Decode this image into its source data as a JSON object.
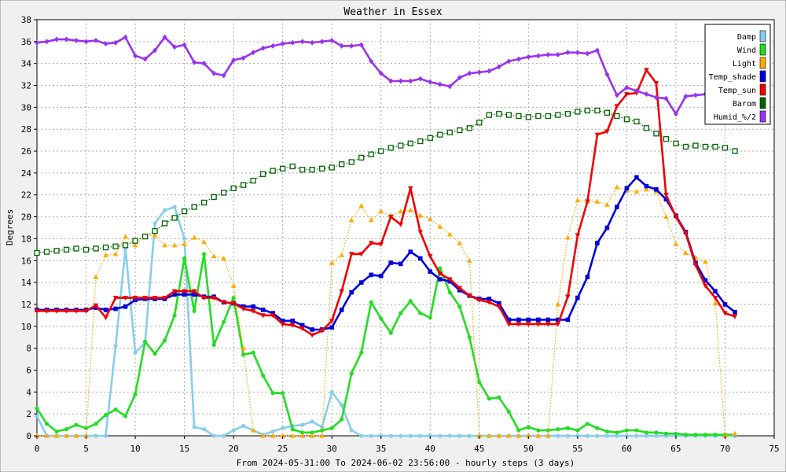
{
  "chart_data": {
    "type": "line",
    "title": "Weather in Essex",
    "xlabel": "From 2024-05-31:00 To 2024-06-02 23:56:00 - hourly steps (3 days)",
    "ylabel": "Degrees",
    "xlim": [
      0,
      75
    ],
    "ylim": [
      0,
      38
    ],
    "x_ticks": [
      0,
      5,
      10,
      15,
      20,
      25,
      30,
      35,
      40,
      45,
      50,
      55,
      60,
      65,
      70,
      75
    ],
    "y_ticks": [
      0,
      2,
      4,
      6,
      8,
      10,
      12,
      14,
      16,
      18,
      20,
      22,
      24,
      26,
      28,
      30,
      32,
      34,
      36,
      38
    ],
    "grid": true,
    "legend_position": "top-right",
    "x": [
      0,
      1,
      2,
      3,
      4,
      5,
      6,
      7,
      8,
      9,
      10,
      11,
      12,
      13,
      14,
      15,
      16,
      17,
      18,
      19,
      20,
      21,
      22,
      23,
      24,
      25,
      26,
      27,
      28,
      29,
      30,
      31,
      32,
      33,
      34,
      35,
      36,
      37,
      38,
      39,
      40,
      41,
      42,
      43,
      44,
      45,
      46,
      47,
      48,
      49,
      50,
      51,
      52,
      53,
      54,
      55,
      56,
      57,
      58,
      59,
      60,
      61,
      62,
      63,
      64,
      65,
      66,
      67,
      68,
      69,
      70,
      71
    ],
    "series": [
      {
        "name": "Damp",
        "color": "#87ceeb",
        "line": "solid",
        "marker": "circle",
        "values": [
          1.8,
          0,
          0,
          0,
          0,
          0,
          0,
          0,
          8.2,
          17.1,
          7.6,
          8.5,
          19.4,
          20.6,
          20.9,
          18.0,
          0.8,
          0.6,
          0,
          0,
          0.5,
          0.9,
          0.5,
          0.1,
          0.4,
          0.7,
          0.9,
          1.0,
          1.3,
          0.8,
          4.0,
          2.8,
          0.5,
          0,
          0,
          0,
          0,
          0,
          0,
          0,
          0,
          0,
          0,
          0,
          0,
          0,
          0,
          0,
          0,
          0,
          0,
          0,
          0,
          0,
          0,
          0,
          0,
          0,
          0,
          0,
          0,
          0,
          0,
          0,
          0,
          0,
          0,
          0,
          0,
          0,
          0,
          0
        ]
      },
      {
        "name": "Wind",
        "color": "#22dd22",
        "line": "solid",
        "marker": "circle",
        "values": [
          2.5,
          1.1,
          0.4,
          0.6,
          1.0,
          0.7,
          1.1,
          1.9,
          2.4,
          1.8,
          3.8,
          8.6,
          7.5,
          8.7,
          11.0,
          16.2,
          11.4,
          16.6,
          8.3,
          10.4,
          12.6,
          7.4,
          7.6,
          5.5,
          3.9,
          3.9,
          0.6,
          0.3,
          0.3,
          0.5,
          0.7,
          1.5,
          5.7,
          7.6,
          12.2,
          10.7,
          9.4,
          11.2,
          12.3,
          11.2,
          10.8,
          15.3,
          13.1,
          11.8,
          9.0,
          4.9,
          3.4,
          3.5,
          2.2,
          0.5,
          0.8,
          0.5,
          0.5,
          0.6,
          0.7,
          0.5,
          1.1,
          0.7,
          0.4,
          0.3,
          0.5,
          0.5,
          0.3,
          0.3,
          0.2,
          0.2,
          0.1,
          0.1,
          0.1,
          0.1,
          0.1,
          0.1
        ]
      },
      {
        "name": "Light",
        "color": "#ffaa00",
        "line": "dotted",
        "marker": "triangle",
        "values": [
          0,
          0,
          0,
          0,
          0,
          0,
          14.5,
          16.5,
          16.6,
          18.2,
          17.4,
          18.3,
          18.3,
          17.4,
          17.4,
          17.5,
          18.1,
          17.7,
          16.4,
          16.2,
          13.7,
          8.0,
          0.5,
          0,
          0,
          0,
          0,
          0,
          0,
          0,
          15.8,
          16.5,
          19.7,
          21.0,
          19.7,
          20.5,
          20.1,
          20.5,
          20.6,
          20.1,
          19.8,
          19.1,
          18.4,
          17.6,
          16.0,
          0,
          0,
          0,
          0,
          0,
          0,
          0,
          0,
          12.0,
          18.1,
          21.5,
          21.4,
          21.4,
          21.1,
          22.7,
          22.4,
          22.3,
          22.5,
          22.3,
          20.0,
          17.5,
          16.7,
          16.3,
          15.9,
          12.1,
          0,
          0.2
        ]
      },
      {
        "name": "Temp_shade",
        "color": "#0000dd",
        "line": "solid",
        "marker": "square",
        "values": [
          11.5,
          11.5,
          11.5,
          11.5,
          11.5,
          11.5,
          11.7,
          11.5,
          11.6,
          11.8,
          12.4,
          12.5,
          12.5,
          12.5,
          12.9,
          12.9,
          12.9,
          12.7,
          12.7,
          12.2,
          12.1,
          11.8,
          11.8,
          11.5,
          11.2,
          10.5,
          10.5,
          10.1,
          9.7,
          9.7,
          9.9,
          11.5,
          13.1,
          14.0,
          14.7,
          14.6,
          15.8,
          15.7,
          16.8,
          16.2,
          15.0,
          14.3,
          14.1,
          13.3,
          12.8,
          12.5,
          12.5,
          12.1,
          10.6,
          10.6,
          10.6,
          10.6,
          10.6,
          10.6,
          10.6,
          12.6,
          14.5,
          17.6,
          19.0,
          20.9,
          22.6,
          23.6,
          22.8,
          22.5,
          21.6,
          20.1,
          18.6,
          15.8,
          14.2,
          13.2,
          12.0,
          11.3
        ]
      },
      {
        "name": "Temp_sun",
        "color": "#ee0000",
        "line": "solid",
        "marker": "triangle-down",
        "values": [
          11.4,
          11.4,
          11.4,
          11.4,
          11.4,
          11.4,
          11.9,
          10.8,
          12.6,
          12.6,
          12.6,
          12.6,
          12.6,
          12.6,
          13.2,
          13.2,
          13.2,
          12.6,
          12.6,
          12.2,
          12.1,
          11.6,
          11.4,
          11.0,
          11.0,
          10.2,
          10.1,
          9.8,
          9.2,
          9.6,
          10.5,
          13.2,
          16.6,
          16.6,
          17.6,
          17.5,
          20.0,
          19.3,
          22.6,
          18.6,
          16.4,
          14.8,
          14.3,
          13.5,
          12.8,
          12.4,
          12.2,
          11.8,
          10.2,
          10.2,
          10.2,
          10.2,
          10.2,
          10.2,
          12.7,
          18.3,
          21.4,
          27.5,
          27.8,
          30.1,
          31.2,
          31.3,
          33.4,
          32.2,
          22.0,
          20.0,
          18.5,
          15.6,
          13.7,
          12.6,
          11.2,
          10.9
        ]
      },
      {
        "name": "Barom",
        "color": "#006400",
        "line": "dotted",
        "marker": "square-open",
        "values": [
          16.7,
          16.8,
          16.9,
          17.0,
          17.1,
          17.0,
          17.1,
          17.2,
          17.3,
          17.4,
          17.8,
          18.2,
          18.7,
          19.4,
          19.9,
          20.5,
          20.9,
          21.3,
          21.8,
          22.2,
          22.6,
          22.9,
          23.3,
          23.9,
          24.2,
          24.4,
          24.6,
          24.3,
          24.3,
          24.4,
          24.5,
          24.8,
          25.0,
          25.4,
          25.7,
          26.0,
          26.3,
          26.5,
          26.7,
          26.9,
          27.2,
          27.5,
          27.7,
          27.9,
          28.1,
          28.6,
          29.3,
          29.4,
          29.3,
          29.2,
          29.1,
          29.2,
          29.2,
          29.3,
          29.4,
          29.6,
          29.7,
          29.7,
          29.5,
          29.2,
          28.9,
          28.7,
          28.1,
          27.6,
          27.1,
          26.7,
          26.4,
          26.5,
          26.4,
          26.4,
          26.3,
          26.0
        ]
      },
      {
        "name": "Humid_%/2",
        "color": "#9933ee",
        "line": "solid",
        "marker": "diamond",
        "values": [
          35.9,
          36.0,
          36.2,
          36.2,
          36.1,
          36.0,
          36.1,
          35.8,
          35.9,
          36.4,
          34.7,
          34.4,
          35.2,
          36.4,
          35.5,
          35.7,
          34.1,
          34.0,
          33.1,
          32.9,
          34.3,
          34.5,
          35.0,
          35.4,
          35.6,
          35.8,
          35.9,
          36.0,
          35.9,
          36.0,
          36.1,
          35.6,
          35.6,
          35.7,
          34.2,
          33.1,
          32.4,
          32.4,
          32.4,
          32.6,
          32.3,
          32.1,
          31.9,
          32.7,
          33.1,
          33.2,
          33.3,
          33.7,
          34.2,
          34.4,
          34.6,
          34.7,
          34.8,
          34.8,
          35.0,
          35.0,
          34.9,
          35.2,
          33.0,
          31.1,
          31.8,
          31.5,
          31.2,
          30.9,
          30.8,
          29.4,
          31.0,
          31.1,
          31.2,
          null,
          null,
          null
        ]
      }
    ]
  }
}
